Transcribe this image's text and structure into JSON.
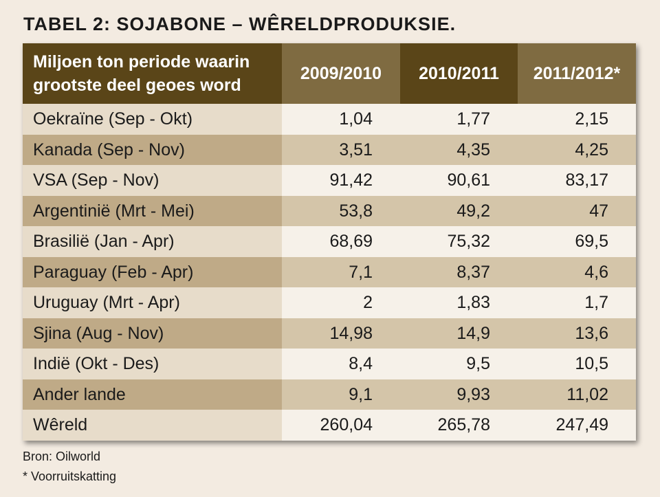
{
  "title": "TABEL 2: SOJABONE – WÊRELDPRODUKSIE.",
  "table": {
    "header": {
      "label_line1": "Miljoen ton periode waarin",
      "label_line2": "grootste deel geoes word",
      "years": [
        "2009/2010",
        "2010/2011",
        "2011/2012*"
      ]
    },
    "rows": [
      {
        "label": "Oekraïne (Sep - Okt)",
        "values": [
          "1,04",
          "1,77",
          "2,15"
        ]
      },
      {
        "label": "Kanada (Sep - Nov)",
        "values": [
          "3,51",
          "4,35",
          "4,25"
        ]
      },
      {
        "label": "VSA (Sep - Nov)",
        "values": [
          "91,42",
          "90,61",
          "83,17"
        ]
      },
      {
        "label": "Argentinië (Mrt - Mei)",
        "values": [
          "53,8",
          "49,2",
          "47"
        ]
      },
      {
        "label": "Brasilië (Jan - Apr)",
        "values": [
          "68,69",
          "75,32",
          "69,5"
        ]
      },
      {
        "label": "Paraguay (Feb - Apr)",
        "values": [
          "7,1",
          "8,37",
          "4,6"
        ]
      },
      {
        "label": "Uruguay (Mrt - Apr)",
        "values": [
          "2",
          "1,83",
          "1,7"
        ]
      },
      {
        "label": "Sjina (Aug - Nov)",
        "values": [
          "14,98",
          "14,9",
          "13,6"
        ]
      },
      {
        "label": "Indië (Okt - Des)",
        "values": [
          "8,4",
          "9,5",
          "10,5"
        ]
      },
      {
        "label": "Ander lande",
        "values": [
          "9,1",
          "9,93",
          "11,02"
        ]
      },
      {
        "label": "Wêreld",
        "values": [
          "260,04",
          "265,78",
          "247,49"
        ]
      }
    ]
  },
  "footer": {
    "source": "Bron: Oilworld",
    "note": "* Voorruitskatting"
  }
}
